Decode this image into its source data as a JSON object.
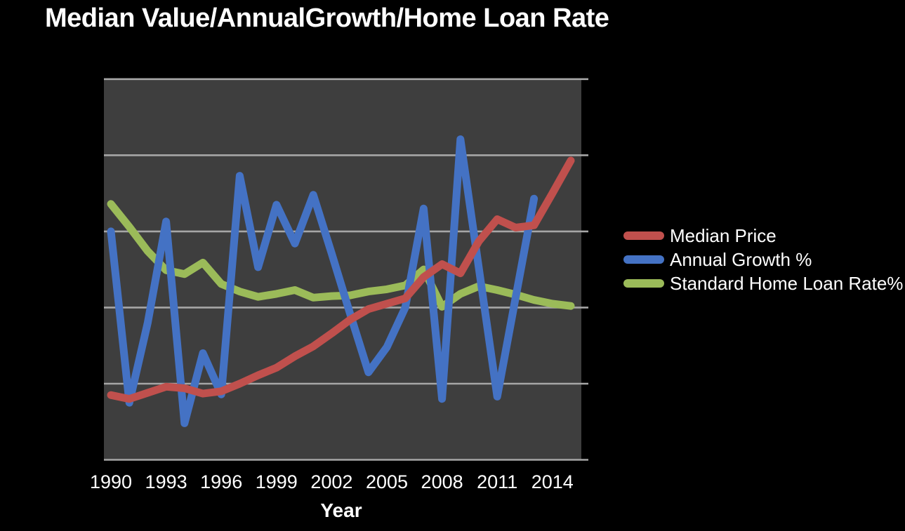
{
  "title": "Median Value/AnnualGrowth/Home Loan Rate",
  "colors": {
    "background": "#000000",
    "plot_fill": "#3e3e3e",
    "gridline": "#a6a6a6",
    "text": "#ffffff",
    "median_price": "#c0504d",
    "annual_growth": "#4472c4",
    "home_loan_rate": "#9bbb59"
  },
  "chart_data": {
    "type": "line",
    "title": "Median Value/AnnualGrowth/Home Loan Rate",
    "xlabel": "Year",
    "ylabel": "",
    "x_tick_labels": [
      "1990",
      "1993",
      "1996",
      "1999",
      "2002",
      "2005",
      "2008",
      "2011",
      "2014"
    ],
    "x_range": [
      1990,
      2015
    ],
    "y_axis": {
      "tick_labels_visible": false,
      "gridline_units": [
        0,
        1,
        2,
        3,
        4,
        5
      ],
      "note": "The chart shows no y-axis labels; series values are estimated in horizontal-gridline units (0 = bottom edge of plot, 5 = top edge)."
    },
    "ylim": [
      0,
      5
    ],
    "grid": "horizontal gridlines only",
    "legend_position": "right",
    "plot_background": "dark gray panel on black page",
    "series": [
      {
        "name": "Median Price",
        "data_name": "median-price",
        "color": "#c0504d",
        "start_year": 1990,
        "end_year": 2015,
        "values": [
          0.85,
          0.8,
          0.88,
          0.96,
          0.94,
          0.87,
          0.9,
          1.0,
          1.11,
          1.21,
          1.36,
          1.49,
          1.66,
          1.84,
          1.98,
          2.05,
          2.12,
          2.4,
          2.57,
          2.45,
          2.87,
          3.16,
          3.05,
          3.08,
          3.5,
          3.93
        ]
      },
      {
        "name": "Annual Growth %",
        "data_name": "annual-growth",
        "color": "#4472c4",
        "start_year": 1990,
        "end_year": 2013,
        "values": [
          3.0,
          0.75,
          1.8,
          3.13,
          0.48,
          1.4,
          0.86,
          3.73,
          2.53,
          3.35,
          2.84,
          3.48,
          2.71,
          1.92,
          1.15,
          1.48,
          2.0,
          3.3,
          0.8,
          4.21,
          2.52,
          0.83,
          2.13,
          3.43
        ]
      },
      {
        "name": "Standard Home Loan Rate%",
        "data_name": "home-loan-rate",
        "color": "#9bbb59",
        "start_year": 1990,
        "end_year": 2015,
        "values": [
          3.36,
          3.06,
          2.74,
          2.49,
          2.44,
          2.59,
          2.31,
          2.21,
          2.14,
          2.18,
          2.23,
          2.13,
          2.15,
          2.16,
          2.21,
          2.24,
          2.29,
          2.5,
          2.01,
          2.18,
          2.28,
          2.23,
          2.17,
          2.1,
          2.05,
          2.02
        ]
      }
    ]
  }
}
